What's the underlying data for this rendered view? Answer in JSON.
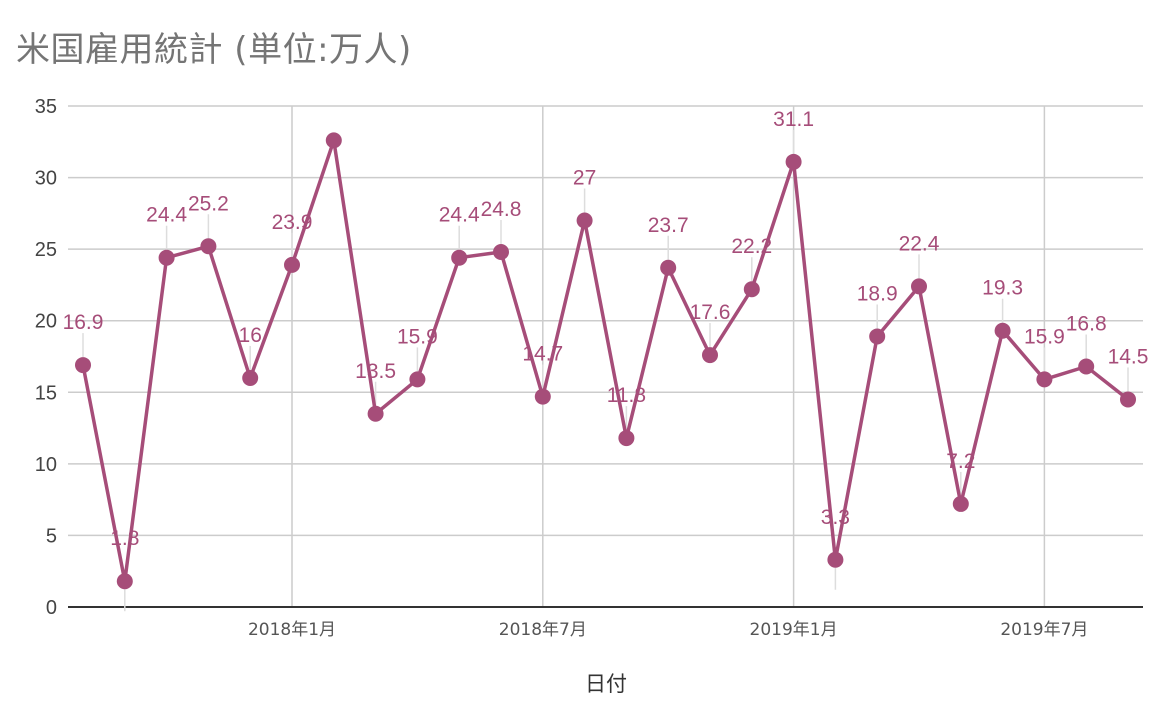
{
  "colors": {
    "series": "#a64d79",
    "grid": "#cccccc",
    "axis": "#333333",
    "leader": "#dddddd"
  },
  "chart_data": {
    "type": "line",
    "title": "米国雇用統計 (単位:万人)",
    "xlabel": "日付",
    "ylabel": "",
    "ylim": [
      0,
      35
    ],
    "y_ticks": [
      0,
      5,
      10,
      15,
      20,
      25,
      30,
      35
    ],
    "x_ticks": [
      {
        "label": "2018年1月",
        "month_index": 5
      },
      {
        "label": "2018年7月",
        "month_index": 11
      },
      {
        "label": "2019年1月",
        "month_index": 17
      },
      {
        "label": "2019年7月",
        "month_index": 23
      }
    ],
    "x": [
      "2017-08",
      "2017-09",
      "2017-10",
      "2017-11",
      "2017-12",
      "2018-01",
      "2018-02",
      "2018-03",
      "2018-04",
      "2018-05",
      "2018-06",
      "2018-07",
      "2018-08",
      "2018-09",
      "2018-10",
      "2018-11",
      "2018-12",
      "2019-01",
      "2019-02",
      "2019-03",
      "2019-04",
      "2019-05",
      "2019-06",
      "2019-07",
      "2019-08",
      "2019-09"
    ],
    "series": [
      {
        "values": [
          16.9,
          1.8,
          24.4,
          25.2,
          16,
          23.9,
          32.6,
          13.5,
          15.9,
          24.4,
          24.8,
          14.7,
          27,
          11.8,
          23.7,
          17.6,
          22.2,
          31.1,
          3.3,
          18.9,
          22.4,
          7.2,
          19.3,
          15.9,
          16.8,
          14.5
        ],
        "labels": [
          "16.9",
          "1.8",
          "24.4",
          "25.2",
          "16",
          "23.9",
          "",
          "13.5",
          "15.9",
          "24.4",
          "24.8",
          "14.7",
          "27",
          "11.8",
          "23.7",
          "17.6",
          "22.2",
          "31.1",
          "3.3",
          "18.9",
          "22.4",
          "7.2",
          "19.3",
          "15.9",
          "16.8",
          "14.5"
        ]
      }
    ],
    "grid": true,
    "legend": "none"
  }
}
